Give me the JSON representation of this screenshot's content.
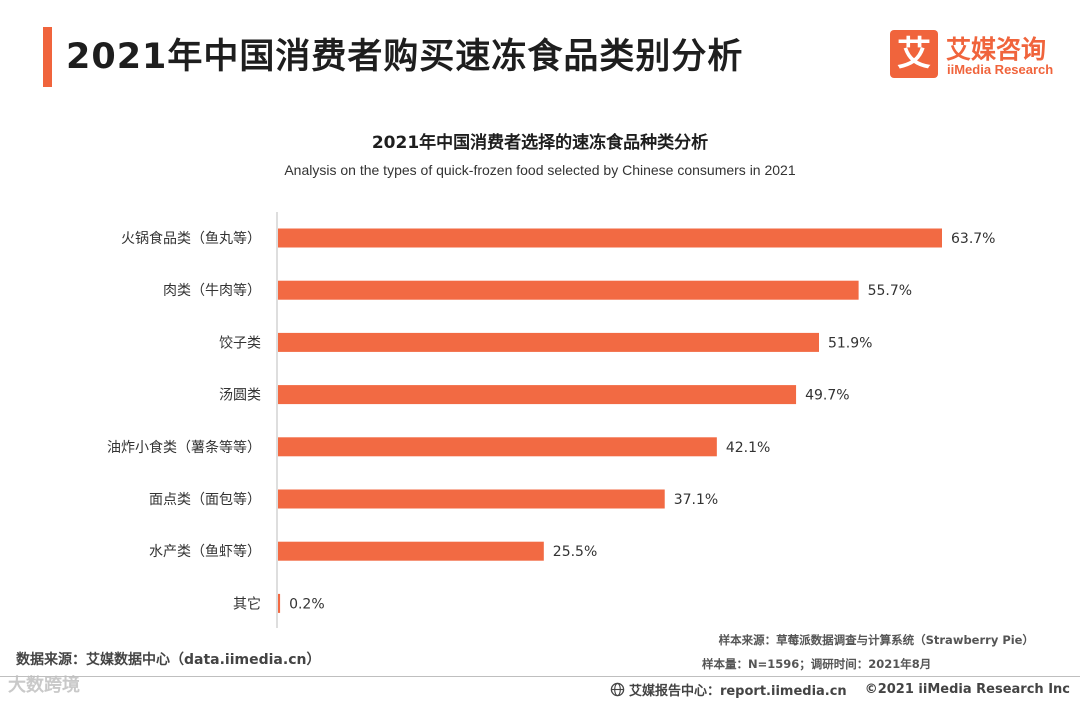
{
  "header": {
    "title": "2021年中国消费者购买速冻食品类别分析"
  },
  "logo": {
    "mark": "艾",
    "name_cn": "艾媒咨询",
    "name_en": "iiMedia Research"
  },
  "colors": {
    "accent": "#f0643c",
    "bar": "#f26a43"
  },
  "chart_data": {
    "type": "bar",
    "orientation": "horizontal",
    "title": "2021年中国消费者选择的速冻食品种类分析",
    "subtitle": "Analysis on the types of quick-frozen food selected by Chinese consumers in 2021",
    "categories": [
      "火锅食品类（鱼丸等）",
      "肉类（牛肉等）",
      "饺子类",
      "汤圆类",
      "油炸小食类（薯条等等）",
      "面点类（面包等）",
      "水产类（鱼虾等）",
      "其它"
    ],
    "values": [
      63.7,
      55.7,
      51.9,
      49.7,
      42.1,
      37.1,
      25.5,
      0.2
    ],
    "value_labels": [
      "63.7%",
      "55.7%",
      "51.9%",
      "49.7%",
      "42.1%",
      "37.1%",
      "25.5%",
      "0.2%"
    ],
    "unit": "%",
    "xlim": [
      0,
      70
    ],
    "grid": false,
    "legend": "none"
  },
  "footer": {
    "data_source": "数据来源：艾媒数据中心（data.iimedia.cn）",
    "sample_source": "样本来源：草莓派数据调查与计算系统（Strawberry Pie）",
    "sample_size": "样本量：N=1596；调研时间：2021年8月",
    "report_center": "艾媒报告中心：report.iimedia.cn",
    "copyright": "©2021  iiMedia Research  Inc",
    "watermark": "大数跨境"
  }
}
